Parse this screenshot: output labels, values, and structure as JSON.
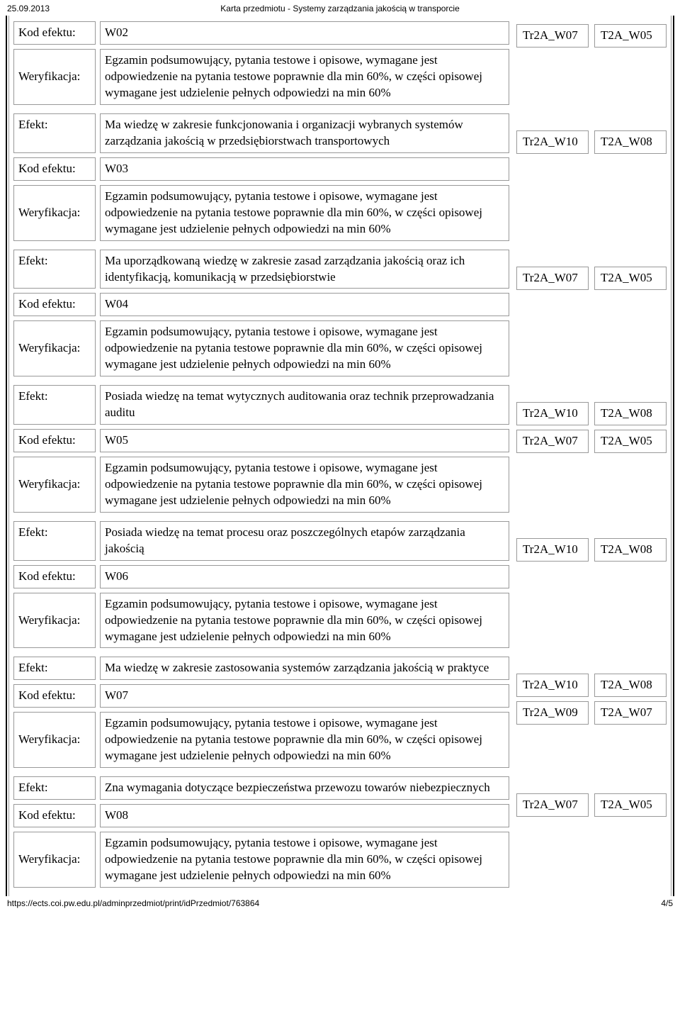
{
  "header": {
    "date": "25.09.2013",
    "title": "Karta przedmiotu - Systemy zarządzania jakością w transporcie"
  },
  "footer": {
    "url": "https://ects.coi.pw.edu.pl/adminprzedmiot/print/idPrzedmiot/763864",
    "page": "4/5"
  },
  "labels": {
    "effect": "Efekt:",
    "code": "Kod efektu:",
    "verify": "Weryfikacja:"
  },
  "verify_text": "Egzamin podsumowujący, pytania testowe i opisowe, wymagane jest odpowiedzenie na pytania testowe poprawnie dla min 60%, w części opisowej wymagane jest udzielenie pełnych odpowiedzi na min 60%",
  "blocks": [
    {
      "code": "W02",
      "effect": "",
      "tags_left": [
        "Tr2A_W07"
      ],
      "tags_right": [
        "T2A_W05"
      ],
      "top_partial": true
    },
    {
      "code": "W03",
      "effect": "Ma wiedzę w zakresie funkcjonowania i organizacji wybranych systemów zarządzania jakością w przedsiębiorstwach transportowych",
      "tags_left": [
        "Tr2A_W10"
      ],
      "tags_right": [
        "T2A_W08"
      ]
    },
    {
      "code": "W04",
      "effect": "Ma uporządkowaną wiedzę w zakresie zasad zarządzania jakością oraz ich identyfikacją, komunikacją w przedsiębiorstwie",
      "tags_left": [
        "Tr2A_W07"
      ],
      "tags_right": [
        "T2A_W05"
      ]
    },
    {
      "code": "W05",
      "effect": "Posiada wiedzę na temat wytycznych auditowania oraz technik przeprowadzania auditu",
      "tags_left": [
        "Tr2A_W10",
        "Tr2A_W07"
      ],
      "tags_right": [
        "T2A_W08",
        "T2A_W05"
      ]
    },
    {
      "code": "W06",
      "effect": "Posiada wiedzę na temat procesu oraz poszczególnych etapów zarządzania jakością",
      "tags_left": [
        "Tr2A_W10"
      ],
      "tags_right": [
        "T2A_W08"
      ]
    },
    {
      "code": "W07",
      "effect": "Ma wiedzę w zakresie zastosowania systemów zarządzania jakością w praktyce",
      "tags_left": [
        "Tr2A_W10",
        "Tr2A_W09"
      ],
      "tags_right": [
        "T2A_W08",
        "T2A_W07"
      ]
    },
    {
      "code": "W08",
      "effect": "Zna wymagania dotyczące bezpieczeństwa przewozu towarów niebezpiecznych",
      "tags_left": [
        "Tr2A_W07"
      ],
      "tags_right": [
        "T2A_W05"
      ]
    }
  ]
}
